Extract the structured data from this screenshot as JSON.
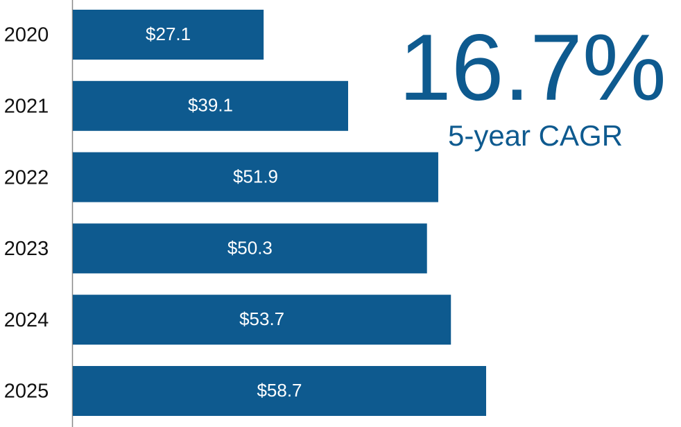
{
  "chart_data": {
    "type": "hbar",
    "categories": [
      "2020",
      "2021",
      "2022",
      "2023",
      "2024",
      "2025"
    ],
    "values": [
      27.1,
      39.1,
      51.9,
      50.3,
      53.7,
      58.7
    ],
    "value_labels": [
      "$27.1",
      "$39.1",
      "$51.9",
      "$50.3",
      "$53.7",
      "$58.7"
    ],
    "color": "#0e5a8f",
    "annotations": [
      "16.7%",
      "5-year CAGR"
    ]
  }
}
